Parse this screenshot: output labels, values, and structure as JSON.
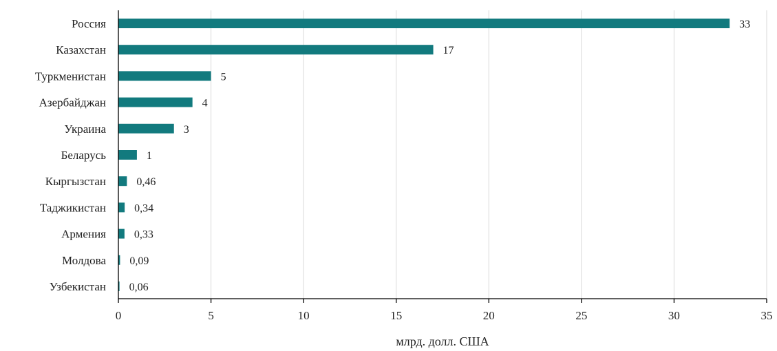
{
  "chart_data": {
    "type": "bar",
    "orientation": "horizontal",
    "categories": [
      "Россия",
      "Казахстан",
      "Туркменистан",
      "Азербайджан",
      "Украина",
      "Беларусь",
      "Кыргызстан",
      "Таджикистан",
      "Армения",
      "Молдова",
      "Узбекистан"
    ],
    "values": [
      33,
      17,
      5,
      4,
      3,
      1,
      0.46,
      0.34,
      0.33,
      0.09,
      0.06
    ],
    "data_labels": [
      "33",
      "17",
      "5",
      "4",
      "3",
      "1",
      "0,46",
      "0,34",
      "0,33",
      "0,09",
      "0,06"
    ],
    "xlabel": "млрд. долл. США",
    "xlim": [
      0,
      35
    ],
    "xticks": [
      0,
      5,
      10,
      15,
      20,
      25,
      30,
      35
    ],
    "grid": true,
    "bar_color": "#127a7e"
  }
}
